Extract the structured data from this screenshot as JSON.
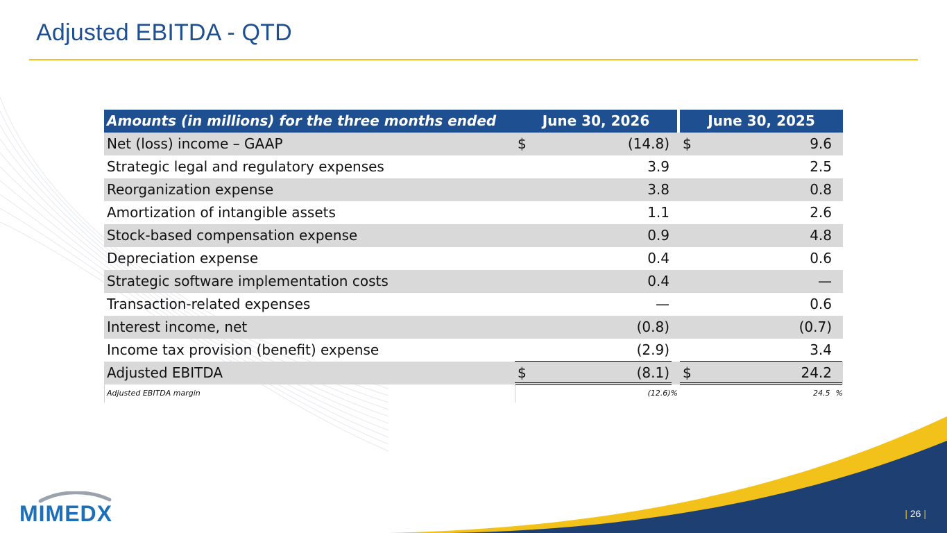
{
  "slide": {
    "title": "Adjusted EBITDA - QTD",
    "page_number": "26",
    "logo_text": "MIMEDX"
  },
  "colors": {
    "brand_blue": "#1d4f91",
    "accent_yellow": "#f2c21a",
    "row_shade": "#d9d9d9"
  },
  "table": {
    "header": {
      "label": "Amounts (in millions) for the three months ended",
      "col1": "June 30, 2026",
      "col2": "June 30, 2025"
    },
    "rows": [
      {
        "label": "Net (loss) income – GAAP",
        "c1_prefix": "$",
        "c1": "(14.8)",
        "c2_prefix": "$",
        "c2": "9.6"
      },
      {
        "label": "Strategic legal and regulatory expenses",
        "c1_prefix": "",
        "c1": "3.9",
        "c2_prefix": "",
        "c2": "2.5"
      },
      {
        "label": "Reorganization expense",
        "c1_prefix": "",
        "c1": "3.8",
        "c2_prefix": "",
        "c2": "0.8"
      },
      {
        "label": "Amortization of intangible assets",
        "c1_prefix": "",
        "c1": "1.1",
        "c2_prefix": "",
        "c2": "2.6"
      },
      {
        "label": "Stock-based compensation expense",
        "c1_prefix": "",
        "c1": "0.9",
        "c2_prefix": "",
        "c2": "4.8"
      },
      {
        "label": "Depreciation expense",
        "c1_prefix": "",
        "c1": "0.4",
        "c2_prefix": "",
        "c2": "0.6"
      },
      {
        "label": "Strategic software implementation costs",
        "c1_prefix": "",
        "c1": "0.4",
        "c2_prefix": "",
        "c2": "—"
      },
      {
        "label": "Transaction-related expenses",
        "c1_prefix": "",
        "c1": "—",
        "c2_prefix": "",
        "c2": "0.6"
      },
      {
        "label": "Interest income, net",
        "c1_prefix": "",
        "c1": "(0.8)",
        "c2_prefix": "",
        "c2": "(0.7)"
      },
      {
        "label": "Income tax provision (benefit) expense",
        "c1_prefix": "",
        "c1": "(2.9)",
        "c2_prefix": "",
        "c2": "3.4"
      }
    ],
    "total": {
      "label": "Adjusted EBITDA",
      "c1_prefix": "$",
      "c1": "(8.1)",
      "c2_prefix": "$",
      "c2": "24.2"
    },
    "margin": {
      "label": "Adjusted EBITDA margin",
      "c1": "(12.6)",
      "c1_suffix": "%",
      "c2": "24.5",
      "c2_suffix": "%"
    }
  }
}
